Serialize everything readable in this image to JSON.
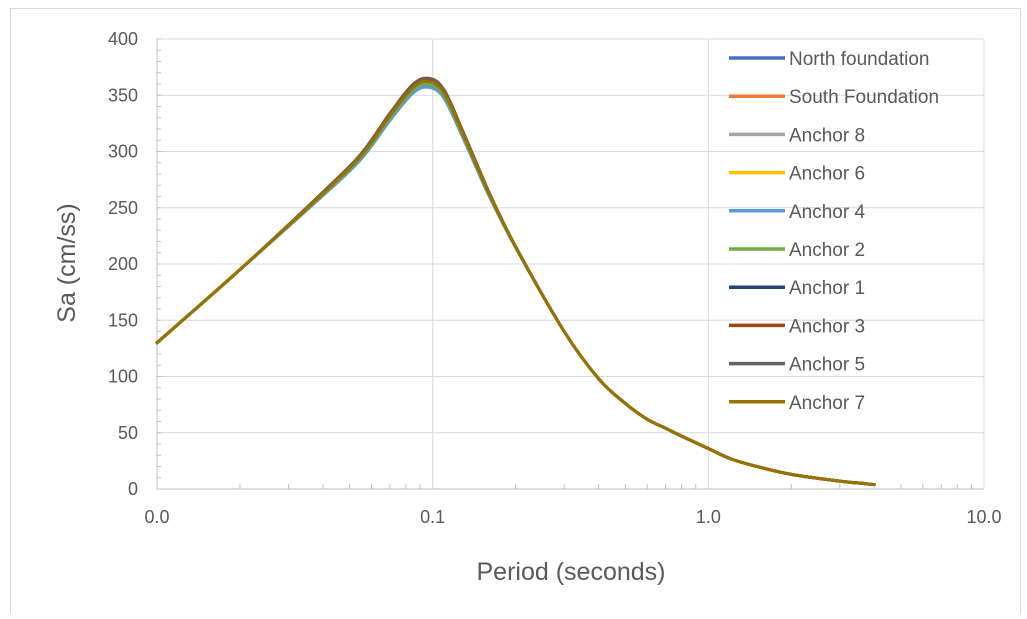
{
  "chart_data": {
    "type": "line",
    "title": "",
    "xlabel": "Period (seconds)",
    "ylabel": "Sa (cm/ss)",
    "x_scale": "log",
    "xlim": [
      0.01,
      10
    ],
    "ylim": [
      0,
      400
    ],
    "x_tick_labels": [
      "0.0",
      "0.1",
      "1.0",
      "10.0"
    ],
    "y_ticks": [
      0,
      50,
      100,
      150,
      200,
      250,
      300,
      350,
      400
    ],
    "grid": true,
    "legend_position": "right",
    "series": [
      {
        "name": "North foundation",
        "color": "#4472C4",
        "peak": 358
      },
      {
        "name": "South Foundation",
        "color": "#ED7D31",
        "peak": 360
      },
      {
        "name": "Anchor 8",
        "color": "#A5A5A5",
        "peak": 361
      },
      {
        "name": "Anchor 6",
        "color": "#FFC000",
        "peak": 361
      },
      {
        "name": "Anchor 4",
        "color": "#5B9BD5",
        "peak": 357
      },
      {
        "name": "Anchor 2",
        "color": "#70AD47",
        "peak": 360
      },
      {
        "name": "Anchor 1",
        "color": "#264478",
        "peak": 363
      },
      {
        "name": "Anchor 3",
        "color": "#9E480E",
        "peak": 365
      },
      {
        "name": "Anchor 5",
        "color": "#636363",
        "peak": 364
      },
      {
        "name": "Anchor 7",
        "color": "#997300",
        "peak": 362
      }
    ],
    "x": [
      0.01,
      0.02,
      0.04,
      0.055,
      0.07,
      0.085,
      0.097,
      0.11,
      0.13,
      0.16,
      0.2,
      0.3,
      0.4,
      0.5,
      0.6,
      0.7,
      0.8,
      1.0,
      1.2,
      1.5,
      2.0,
      3.0,
      4.0
    ],
    "base_y": [
      130,
      195,
      262,
      295,
      330,
      355,
      360,
      350,
      312,
      262,
      215,
      140,
      98,
      76,
      62,
      54,
      47,
      36,
      27,
      20,
      13,
      7,
      4
    ]
  }
}
